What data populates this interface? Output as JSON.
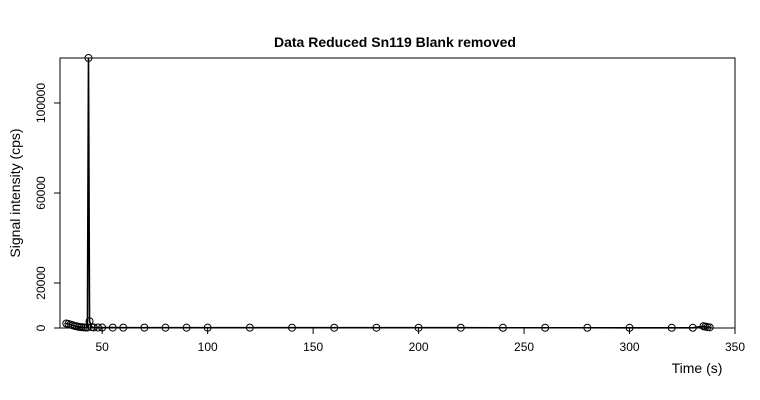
{
  "chart_data": {
    "type": "line",
    "title": "Data Reduced Sn119 Blank removed",
    "xlabel": "Time (s)",
    "ylabel": "Signal intensity (cps)",
    "xlim": [
      30,
      350
    ],
    "ylim": [
      0,
      120000
    ],
    "x_ticks": [
      50,
      100,
      150,
      200,
      250,
      300,
      350
    ],
    "y_ticks": [
      0,
      20000,
      60000,
      100000
    ],
    "x_tick_labels": [
      "50",
      "100",
      "150",
      "200",
      "250",
      "300",
      "350"
    ],
    "y_tick_labels": [
      "0",
      "20000",
      "60000",
      "100000"
    ],
    "grid": false,
    "series": [
      {
        "markers": "open-circle",
        "x": [
          33,
          34,
          35,
          36,
          37,
          38,
          39,
          40,
          41,
          42,
          43,
          43.5,
          44,
          45,
          46,
          48,
          50,
          55,
          60,
          70,
          80,
          90,
          100,
          120,
          140,
          160,
          180,
          200,
          220,
          240,
          260,
          280,
          300,
          320,
          330,
          335,
          336,
          337,
          338
        ],
        "y": [
          2000,
          1800,
          1500,
          1200,
          900,
          700,
          500,
          400,
          300,
          250,
          200,
          120000,
          3000,
          400,
          250,
          220,
          200,
          180,
          170,
          160,
          150,
          150,
          140,
          140,
          130,
          130,
          120,
          120,
          120,
          110,
          110,
          110,
          100,
          100,
          100,
          800,
          600,
          400,
          300
        ]
      }
    ]
  }
}
